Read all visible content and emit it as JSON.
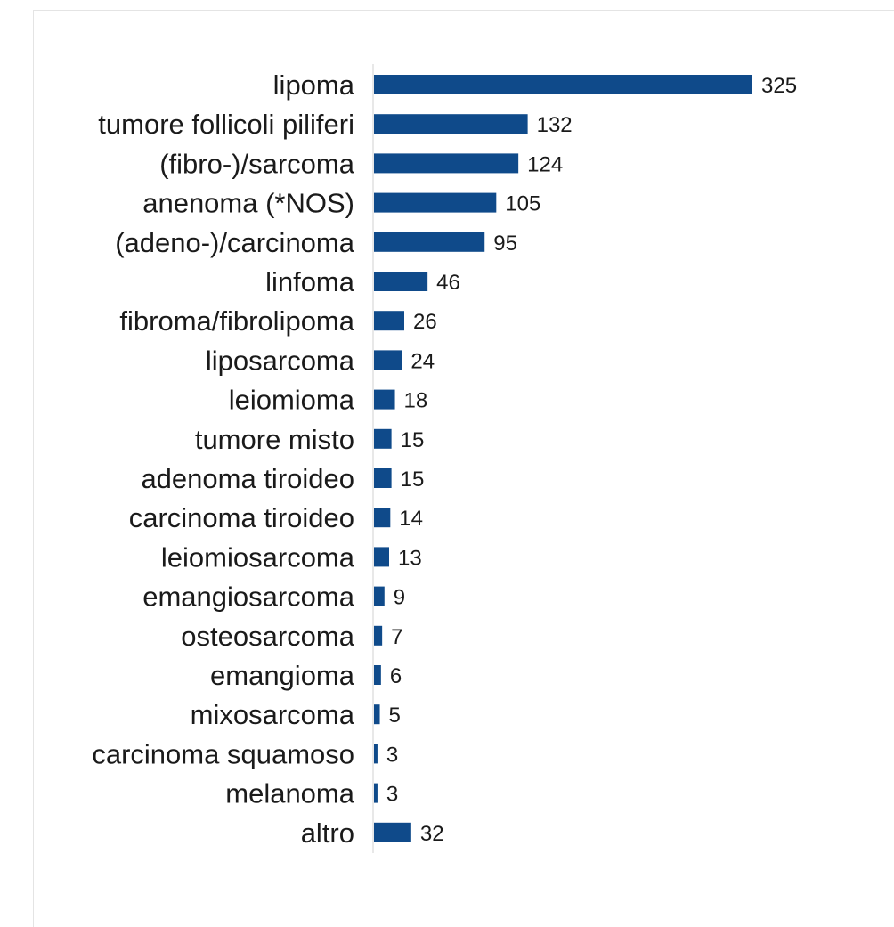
{
  "chart_data": {
    "type": "bar",
    "orientation": "horizontal",
    "title": "",
    "xlabel": "",
    "ylabel": "",
    "grid": false,
    "legend": "none",
    "bar_color": "#0f4a8a",
    "categories": [
      "lipoma",
      "tumore follicoli piliferi",
      "(fibro-)/sarcoma",
      "anenoma (*NOS)",
      "(adeno-)/carcinoma",
      "linfoma",
      "fibroma/fibrolipoma",
      "liposarcoma",
      "leiomioma",
      "tumore misto",
      "adenoma tiroideo",
      "carcinoma tiroideo",
      "leiomiosarcoma",
      "emangiosarcoma",
      "osteosarcoma",
      "emangioma",
      "mixosarcoma",
      "carcinoma squamoso",
      "melanoma",
      "altro"
    ],
    "values": [
      325,
      132,
      124,
      105,
      95,
      46,
      26,
      24,
      18,
      15,
      15,
      14,
      13,
      9,
      7,
      6,
      5,
      3,
      3,
      32
    ],
    "value_labels": [
      "325",
      "132",
      "124",
      "105",
      "95",
      "46",
      "26",
      "24",
      "18",
      "15",
      "15",
      "14",
      "13",
      "9",
      "7",
      "6",
      "5",
      "3",
      "3",
      "32"
    ],
    "xlim": [
      0,
      325
    ]
  }
}
